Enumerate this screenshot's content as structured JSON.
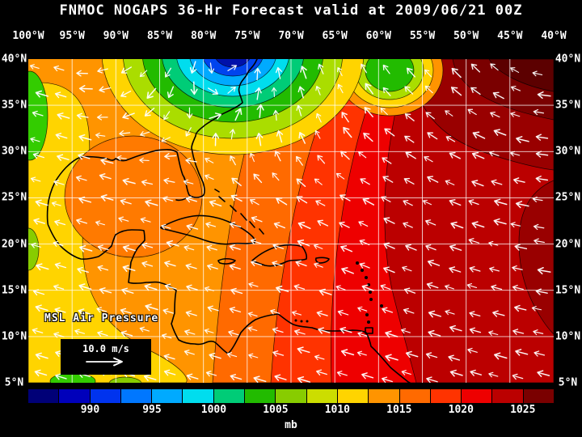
{
  "title": "FNMOC NOGAPS 36-Hr Forecast valid at 2009/06/21 00Z",
  "axes": {
    "lon_labels": [
      "100°W",
      "95°W",
      "90°W",
      "85°W",
      "80°W",
      "75°W",
      "70°W",
      "65°W",
      "60°W",
      "55°W",
      "50°W",
      "45°W",
      "40°W"
    ],
    "lat_labels": [
      "40°N",
      "35°N",
      "30°N",
      "25°N",
      "20°N",
      "15°N",
      "10°N",
      "5°N"
    ]
  },
  "map_overlay": {
    "field_label": "MSL Air Pressure",
    "wind_scale_label": "10.0 m/s"
  },
  "colorbar": {
    "unit": "mb",
    "tick_labels": [
      "990",
      "995",
      "1000",
      "1005",
      "1010",
      "1015",
      "1020",
      "1025"
    ],
    "colors": [
      "#000077",
      "#0000BB",
      "#0033EE",
      "#0077FF",
      "#00AAFF",
      "#00DDEE",
      "#00CC77",
      "#22BB00",
      "#88CC00",
      "#CCDD00",
      "#FFD400",
      "#FF9400",
      "#FF6A00",
      "#FF3300",
      "#EE0000",
      "#BB0000",
      "#7A0000"
    ]
  }
}
